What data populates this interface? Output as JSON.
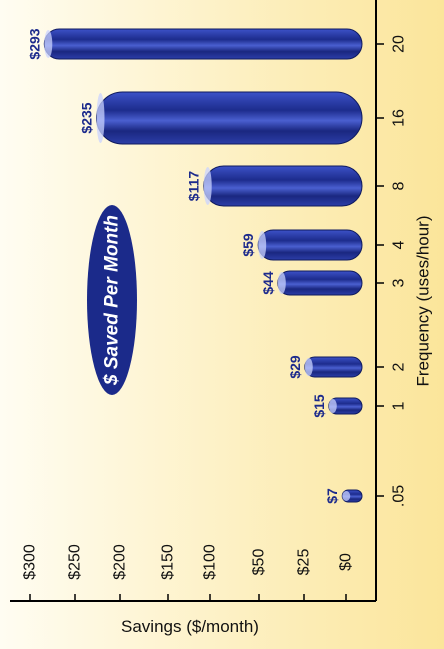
{
  "chart_data": {
    "type": "bar",
    "orientation": "horizontal",
    "title": "$ Saved Per Month",
    "xlabel": "Savings ($/month)",
    "ylabel": "Frequency (uses/hour)",
    "categories": [
      ".05",
      "1",
      "2",
      "3",
      "4",
      "8",
      "16",
      "20"
    ],
    "values": [
      7,
      15,
      29,
      44,
      59,
      117,
      235,
      293
    ],
    "value_labels": [
      "$7",
      "$15",
      "$29",
      "$44",
      "$59",
      "$117",
      "$235",
      "$293"
    ],
    "x_ticks": [
      {
        "value": 0,
        "label": "$0"
      },
      {
        "value": 25,
        "label": "$25"
      },
      {
        "value": 50,
        "label": "$50"
      },
      {
        "value": 100,
        "label": "$100"
      },
      {
        "value": 150,
        "label": "$150"
      },
      {
        "value": 200,
        "label": "$200"
      },
      {
        "value": 250,
        "label": "$250"
      },
      {
        "value": 300,
        "label": "$300"
      }
    ],
    "xlim": [
      0,
      300
    ],
    "bar_color": "#1f2e8f",
    "title_badge_color": "#1b2a8a",
    "background_color": "#fcefb2",
    "grid": false,
    "legend": "none"
  }
}
